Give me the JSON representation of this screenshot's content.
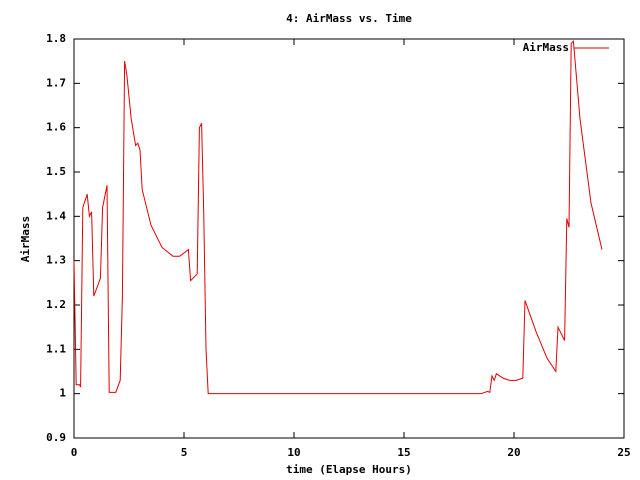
{
  "chart_data": {
    "type": "line",
    "title": "4: AirMass vs. Time",
    "x_label": "time (Elapse Hours)",
    "y_label": "AirMass",
    "xlim": [
      0,
      25
    ],
    "xticks": [
      0,
      5,
      10,
      15,
      20,
      25
    ],
    "ylim": [
      0.9,
      1.8
    ],
    "yticks": [
      0.9,
      1,
      1.1,
      1.2,
      1.3,
      1.4,
      1.5,
      1.6,
      1.7,
      1.8
    ],
    "grid": false,
    "legend": "top-right",
    "x": [
      0,
      0.1,
      0.25,
      0.3,
      0.4,
      0.6,
      0.7,
      0.8,
      0.9,
      1.2,
      1.3,
      1.5,
      1.6,
      1.9,
      2.1,
      2.2,
      2.3,
      2.4,
      2.6,
      2.8,
      2.9,
      3.0,
      3.1,
      3.5,
      4.0,
      4.5,
      4.8,
      5.2,
      5.3,
      5.5,
      5.6,
      5.7,
      5.8,
      5.9,
      6.0,
      6.1,
      18.5,
      18.8,
      18.9,
      19.0,
      19.1,
      19.2,
      19.5,
      19.8,
      20.1,
      20.4,
      20.5,
      21.0,
      21.5,
      21.9,
      22.0,
      22.3,
      22.4,
      22.5,
      22.6,
      22.7,
      23.0,
      23.5,
      24.0
    ],
    "series": [
      {
        "name": "AirMass",
        "color": "#e00000",
        "values": [
          1.3,
          1.02,
          1.02,
          1.015,
          1.42,
          1.45,
          1.4,
          1.41,
          1.22,
          1.26,
          1.42,
          1.47,
          1.003,
          1.003,
          1.03,
          1.22,
          1.75,
          1.72,
          1.62,
          1.56,
          1.565,
          1.55,
          1.46,
          1.38,
          1.33,
          1.31,
          1.31,
          1.325,
          1.255,
          1.265,
          1.27,
          1.6,
          1.61,
          1.4,
          1.1,
          1.0,
          1.0,
          1.005,
          1.003,
          1.04,
          1.03,
          1.045,
          1.035,
          1.03,
          1.03,
          1.035,
          1.21,
          1.14,
          1.08,
          1.05,
          1.15,
          1.12,
          1.395,
          1.375,
          1.79,
          1.795,
          1.62,
          1.43,
          1.325
        ]
      }
    ]
  }
}
